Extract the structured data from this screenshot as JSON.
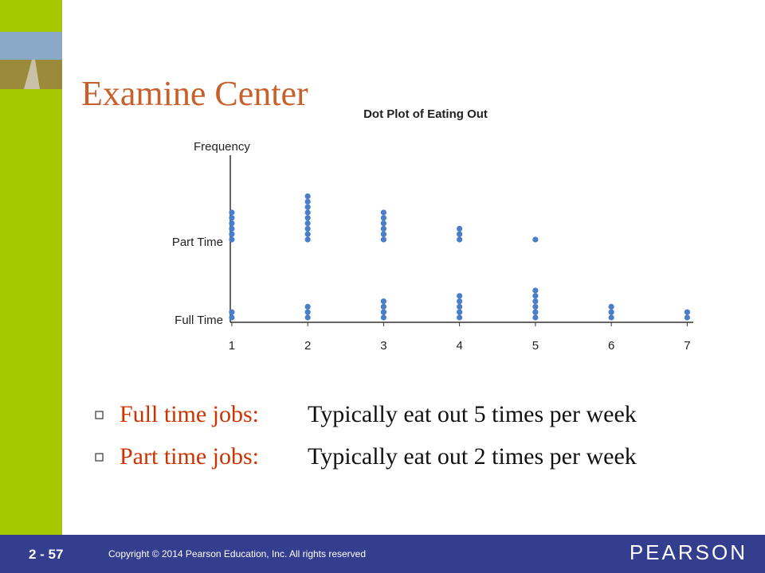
{
  "slide": {
    "title": "Examine Center",
    "bullets": [
      {
        "label": "Full time jobs:",
        "text": "Typically eat out 5 times per week"
      },
      {
        "label": "Part time jobs:",
        "text": "Typically eat out 2 times per week"
      }
    ],
    "footer": {
      "page": "2 - 57",
      "copyright": "Copyright © 2014 Pearson Education, Inc.  All rights reserved",
      "brand": "PEARSON"
    }
  },
  "chart_data": {
    "type": "dot",
    "title": "Dot Plot of Eating Out",
    "y_label": "Frequency",
    "x": [
      1,
      2,
      3,
      4,
      5,
      6,
      7
    ],
    "xlim": [
      0.98,
      7.08
    ],
    "xticks": [
      1,
      2,
      3,
      4,
      5,
      6,
      7
    ],
    "series": [
      {
        "name": "Full Time",
        "color": "#4a7ec9",
        "values": [
          2,
          3,
          4,
          5,
          6,
          3,
          2
        ]
      },
      {
        "name": "Part Time",
        "color": "#4a7ec9",
        "values": [
          6,
          9,
          6,
          3,
          1,
          0,
          0
        ]
      }
    ]
  }
}
